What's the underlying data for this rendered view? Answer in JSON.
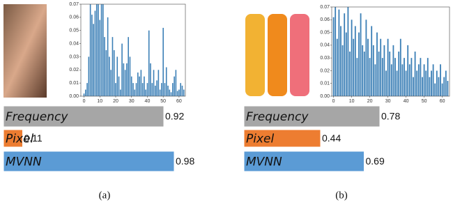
{
  "chart_data": [
    {
      "type": "bar",
      "color": "#3b7fb6",
      "x": [
        0,
        1,
        2,
        3,
        4,
        5,
        6,
        7,
        8,
        9,
        10,
        11,
        12,
        13,
        14,
        15,
        16,
        17,
        18,
        19,
        20,
        21,
        22,
        23,
        24,
        25,
        26,
        27,
        28,
        29,
        30,
        31,
        32,
        33,
        34,
        35,
        36,
        37,
        38,
        39,
        40,
        41,
        42,
        43,
        44,
        45,
        46,
        47,
        48,
        49,
        50,
        51,
        52,
        53,
        54,
        55,
        56,
        57,
        58,
        59,
        60,
        61,
        62,
        63
      ],
      "values": [
        0.002,
        0.005,
        0.01,
        0.03,
        0.07,
        0.062,
        0.055,
        0.065,
        0.07,
        0.07,
        0.058,
        0.07,
        0.07,
        0.045,
        0.035,
        0.06,
        0.03,
        0.02,
        0.045,
        0.035,
        0.01,
        0.03,
        0.015,
        0.005,
        0.04,
        0.025,
        0.02,
        0.025,
        0.045,
        0.03,
        0.015,
        0.01,
        0.005,
        0.01,
        0.018,
        0.015,
        0.02,
        0.01,
        0.015,
        0.005,
        0.01,
        0.05,
        0.025,
        0.01,
        0.02,
        0.008,
        0.012,
        0.02,
        0.005,
        0.01,
        0.052,
        0.01,
        0.022,
        0.008,
        0.005,
        0.003,
        0.01,
        0.015,
        0.02,
        0.004,
        0.005,
        0.01,
        0.008,
        0.005
      ],
      "xlim": [
        -2,
        64
      ],
      "xticks": [
        0,
        10,
        20,
        30,
        40,
        50,
        60
      ],
      "ylim": [
        0,
        0.07
      ],
      "yticks": [
        {
          "value": 0,
          "label": "0.00"
        },
        {
          "value": 0.01,
          "label": "0.01"
        },
        {
          "value": 0.02,
          "label": "0.02"
        },
        {
          "value": 0.03,
          "label": "0.03"
        },
        {
          "value": 0.04,
          "label": "0.04"
        },
        {
          "value": 0.05,
          "label": "0.05"
        },
        {
          "value": 0.06,
          "label": "0.06"
        },
        {
          "value": 0.07,
          "label": "0.07"
        }
      ]
    },
    {
      "type": "hbar",
      "categories": [
        "Frequency",
        "Pixel",
        "MVNN"
      ],
      "values": [
        0.92,
        0.11,
        0.98
      ],
      "colors": [
        "#a6a6a6",
        "#ed7d31",
        "#5b9bd5"
      ]
    },
    {
      "type": "bar",
      "color": "#3b7fb6",
      "x": [
        0,
        1,
        2,
        3,
        4,
        5,
        6,
        7,
        8,
        9,
        10,
        11,
        12,
        13,
        14,
        15,
        16,
        17,
        18,
        19,
        20,
        21,
        22,
        23,
        24,
        25,
        26,
        27,
        28,
        29,
        30,
        31,
        32,
        33,
        34,
        35,
        36,
        37,
        38,
        39,
        40,
        41,
        42,
        43,
        44,
        45,
        46,
        47,
        48,
        49,
        50,
        51,
        52,
        53,
        54,
        55,
        56,
        57,
        58,
        59,
        60,
        61,
        62,
        63
      ],
      "values": [
        0.062,
        0.07,
        0.045,
        0.068,
        0.055,
        0.04,
        0.065,
        0.05,
        0.07,
        0.035,
        0.06,
        0.045,
        0.055,
        0.03,
        0.05,
        0.065,
        0.04,
        0.035,
        0.06,
        0.045,
        0.03,
        0.055,
        0.04,
        0.025,
        0.05,
        0.035,
        0.045,
        0.03,
        0.04,
        0.02,
        0.045,
        0.035,
        0.025,
        0.04,
        0.03,
        0.02,
        0.035,
        0.045,
        0.025,
        0.03,
        0.02,
        0.04,
        0.025,
        0.03,
        0.015,
        0.035,
        0.02,
        0.025,
        0.03,
        0.015,
        0.025,
        0.02,
        0.03,
        0.015,
        0.02,
        0.025,
        0.01,
        0.02,
        0.015,
        0.025,
        0.01,
        0.015,
        0.02,
        0.012
      ],
      "xlim": [
        -1,
        64
      ],
      "xticks": [
        0,
        10,
        20,
        30,
        40,
        50,
        60
      ],
      "ylim": [
        0,
        0.07
      ],
      "yticks": [
        {
          "value": 0,
          "label": "0.00"
        },
        {
          "value": 0.01,
          "label": "0.01"
        },
        {
          "value": 0.02,
          "label": "0.02"
        },
        {
          "value": 0.03,
          "label": "0.03"
        },
        {
          "value": 0.04,
          "label": "0.04"
        },
        {
          "value": 0.05,
          "label": "0.05"
        },
        {
          "value": 0.06,
          "label": "0.06"
        },
        {
          "value": 0.07,
          "label": "0.07"
        }
      ]
    },
    {
      "type": "hbar",
      "categories": [
        "Frequency",
        "Pixel",
        "MVNN"
      ],
      "values": [
        0.78,
        0.44,
        0.69
      ],
      "colors": [
        "#a6a6a6",
        "#ed7d31",
        "#5b9bd5"
      ]
    }
  ],
  "captions": [
    "(a)",
    "(b)"
  ]
}
